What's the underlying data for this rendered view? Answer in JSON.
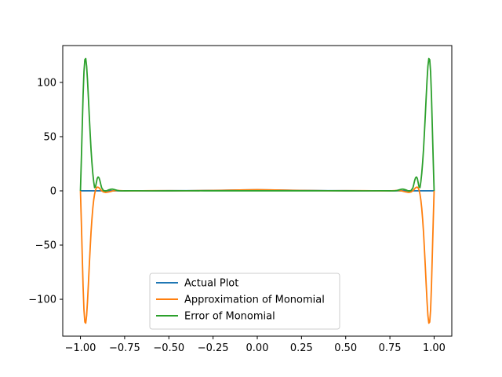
{
  "chart_data": {
    "type": "line",
    "title": "",
    "xlabel": "",
    "ylabel": "",
    "xlim": [
      -1.1,
      1.1
    ],
    "ylim": [
      -134,
      134
    ],
    "x_ticks": [
      -1.0,
      -0.75,
      -0.5,
      -0.25,
      0.0,
      0.25,
      0.5,
      0.75,
      1.0
    ],
    "x_tick_labels": [
      "−1.00",
      "−0.75",
      "−0.50",
      "−0.25",
      "0.00",
      "0.25",
      "0.50",
      "0.75",
      "1.00"
    ],
    "y_ticks": [
      -100,
      -50,
      0,
      50,
      100
    ],
    "y_tick_labels": [
      "−100",
      "−50",
      "0",
      "50",
      "100"
    ],
    "grid": false,
    "legend_position": "lower center",
    "series": [
      {
        "name": "Actual Plot",
        "color": "#1f77b4",
        "x": [
          -1.0,
          -0.9,
          -0.8,
          -0.7,
          -0.6,
          -0.5,
          -0.4,
          -0.3,
          -0.2,
          -0.1,
          0.0,
          0.1,
          0.2,
          0.3,
          0.4,
          0.5,
          0.6,
          0.7,
          0.8,
          0.9,
          1.0
        ],
        "y": [
          0.04,
          0.05,
          0.06,
          0.08,
          0.1,
          0.14,
          0.2,
          0.31,
          0.5,
          0.8,
          1.0,
          0.8,
          0.5,
          0.31,
          0.2,
          0.14,
          0.1,
          0.08,
          0.06,
          0.05,
          0.04
        ]
      },
      {
        "name": "Approximation of Monomial",
        "color": "#ff7f0e",
        "x": [
          -1.0,
          -0.995,
          -0.99,
          -0.985,
          -0.98,
          -0.975,
          -0.97,
          -0.965,
          -0.96,
          -0.955,
          -0.95,
          -0.945,
          -0.94,
          -0.935,
          -0.93,
          -0.925,
          -0.92,
          -0.915,
          -0.91,
          -0.905,
          -0.9,
          -0.895,
          -0.89,
          -0.885,
          -0.88,
          -0.87,
          -0.86,
          -0.85,
          -0.84,
          -0.83,
          -0.82,
          -0.81,
          -0.8,
          -0.79,
          -0.78,
          -0.77,
          -0.76,
          -0.75,
          -0.7,
          -0.6,
          -0.5,
          -0.4,
          -0.3,
          -0.2,
          -0.1,
          0.0,
          0.1,
          0.2,
          0.3,
          0.4,
          0.5,
          0.6,
          0.7,
          0.75,
          0.76,
          0.77,
          0.78,
          0.79,
          0.8,
          0.81,
          0.82,
          0.83,
          0.84,
          0.85,
          0.86,
          0.87,
          0.88,
          0.885,
          0.89,
          0.895,
          0.9,
          0.905,
          0.91,
          0.915,
          0.92,
          0.925,
          0.93,
          0.935,
          0.94,
          0.945,
          0.95,
          0.955,
          0.96,
          0.965,
          0.97,
          0.975,
          0.98,
          0.985,
          0.99,
          0.995,
          1.0
        ],
        "y": [
          0.0,
          -28.0,
          -58.0,
          -88.0,
          -110.0,
          -121.0,
          -122.0,
          -115.0,
          -102.0,
          -86.0,
          -69.0,
          -53.0,
          -38.0,
          -26.0,
          -16.0,
          -8.5,
          -3.0,
          0.6,
          2.6,
          3.4,
          3.3,
          2.8,
          1.9,
          1.0,
          0.1,
          -1.0,
          -1.4,
          -1.3,
          -1.0,
          -0.6,
          -0.2,
          0.1,
          0.3,
          0.35,
          0.3,
          0.2,
          0.1,
          0.05,
          0.0,
          0.2,
          0.12,
          0.1,
          0.25,
          0.45,
          0.75,
          1.05,
          0.75,
          0.45,
          0.25,
          0.1,
          0.12,
          0.2,
          0.0,
          0.05,
          0.1,
          0.2,
          0.3,
          0.35,
          0.3,
          0.1,
          -0.2,
          -0.6,
          -1.0,
          -1.3,
          -1.4,
          -1.0,
          0.1,
          1.0,
          1.9,
          2.8,
          3.3,
          3.4,
          2.6,
          0.6,
          -3.0,
          -8.5,
          -16.0,
          -26.0,
          -38.0,
          -53.0,
          -69.0,
          -86.0,
          -102.0,
          -115.0,
          -122.0,
          -121.0,
          -110.0,
          -88.0,
          -58.0,
          -28.0,
          0.0
        ]
      },
      {
        "name": "Error of Monomial",
        "color": "#2ca02c",
        "x": [
          -1.0,
          -0.995,
          -0.99,
          -0.985,
          -0.98,
          -0.975,
          -0.97,
          -0.965,
          -0.96,
          -0.955,
          -0.95,
          -0.945,
          -0.94,
          -0.935,
          -0.93,
          -0.925,
          -0.92,
          -0.915,
          -0.91,
          -0.905,
          -0.9,
          -0.895,
          -0.89,
          -0.885,
          -0.88,
          -0.87,
          -0.86,
          -0.85,
          -0.84,
          -0.83,
          -0.82,
          -0.81,
          -0.8,
          -0.79,
          -0.78,
          -0.77,
          -0.76,
          -0.75,
          -0.7,
          -0.6,
          -0.5,
          -0.4,
          -0.3,
          -0.2,
          -0.1,
          0.0,
          0.1,
          0.2,
          0.3,
          0.4,
          0.5,
          0.6,
          0.7,
          0.75,
          0.76,
          0.77,
          0.78,
          0.79,
          0.8,
          0.81,
          0.82,
          0.83,
          0.84,
          0.85,
          0.86,
          0.87,
          0.88,
          0.885,
          0.89,
          0.895,
          0.9,
          0.905,
          0.91,
          0.915,
          0.92,
          0.925,
          0.93,
          0.935,
          0.94,
          0.945,
          0.95,
          0.955,
          0.96,
          0.965,
          0.97,
          0.975,
          0.98,
          0.985,
          0.99,
          0.995,
          1.0
        ],
        "y": [
          0.0,
          28.0,
          58.0,
          88.0,
          110.0,
          121.0,
          122.0,
          115.0,
          102.0,
          86.0,
          69.0,
          53.0,
          38.0,
          26.0,
          16.0,
          8.5,
          3.0,
          3.5,
          7.5,
          11.5,
          12.8,
          12.0,
          9.5,
          6.0,
          2.8,
          0.4,
          -0.2,
          0.2,
          0.9,
          1.4,
          1.6,
          1.3,
          0.8,
          0.35,
          0.1,
          0.0,
          0.0,
          0.05,
          0.1,
          0.0,
          0.05,
          0.1,
          0.05,
          0.05,
          0.05,
          0.05,
          0.05,
          0.05,
          0.05,
          0.1,
          0.05,
          0.0,
          0.1,
          0.05,
          0.0,
          0.0,
          0.1,
          0.35,
          0.8,
          1.3,
          1.6,
          1.4,
          0.9,
          0.2,
          -0.2,
          0.4,
          2.8,
          6.0,
          9.5,
          12.0,
          12.8,
          11.5,
          7.5,
          3.5,
          3.0,
          8.5,
          16.0,
          26.0,
          38.0,
          53.0,
          69.0,
          86.0,
          102.0,
          115.0,
          122.0,
          121.0,
          110.0,
          88.0,
          58.0,
          28.0,
          0.0
        ]
      }
    ]
  }
}
